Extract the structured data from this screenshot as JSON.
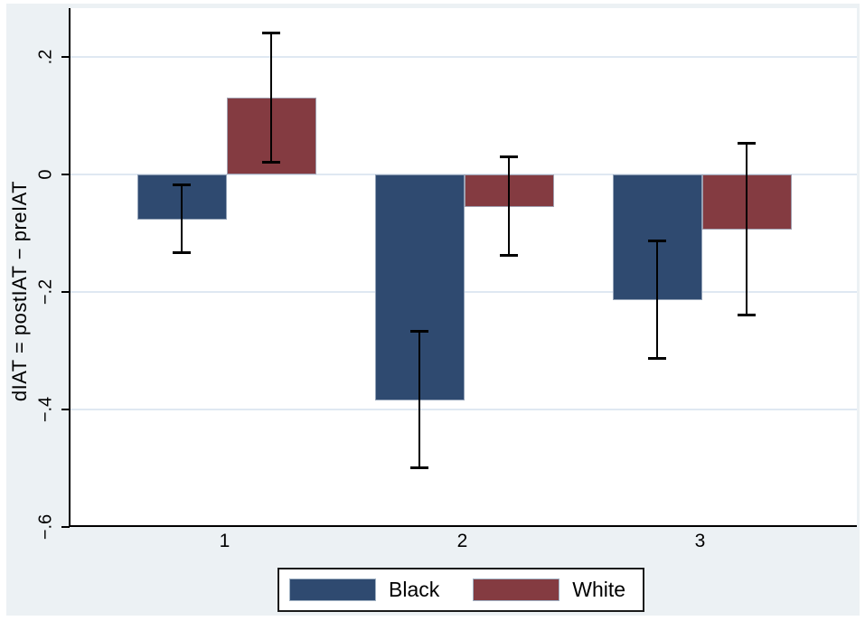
{
  "chart_data": {
    "type": "bar",
    "title": "",
    "xlabel": "",
    "ylabel": "dIAT = postIAT − preIAT",
    "categories": [
      "1",
      "2",
      "3"
    ],
    "series": [
      {
        "name": "Black",
        "color": "#2f4a70",
        "values": [
          -0.077,
          -0.385,
          -0.215
        ],
        "ci_low": [
          -0.134,
          -0.501,
          -0.314
        ],
        "ci_high": [
          -0.017,
          -0.267,
          -0.112
        ]
      },
      {
        "name": "White",
        "color": "#843b41",
        "values": [
          0.13,
          -0.056,
          -0.094
        ],
        "ci_low": [
          0.02,
          -0.139,
          -0.24
        ],
        "ci_high": [
          0.241,
          0.03,
          0.053
        ]
      }
    ],
    "yticks": [
      {
        "label": ".2",
        "value": 0.2
      },
      {
        "label": "0",
        "value": 0
      },
      {
        "label": "−.2",
        "value": -0.2
      },
      {
        "label": "−.4",
        "value": -0.4
      },
      {
        "label": "−.6",
        "value": -0.6
      }
    ],
    "ylim": [
      -0.6,
      0.277
    ],
    "grid": true,
    "error_bars": true,
    "legend_position": "bottom"
  },
  "legend": {
    "entries": [
      {
        "label": "Black",
        "color": "#2f4a70"
      },
      {
        "label": "White",
        "color": "#843b41"
      }
    ]
  },
  "colors": {
    "background": "#ecf1f4",
    "plot_bg": "#ffffff",
    "gridline": "#dfe8f2",
    "axis": "#000000",
    "error_bar": "#000000"
  }
}
